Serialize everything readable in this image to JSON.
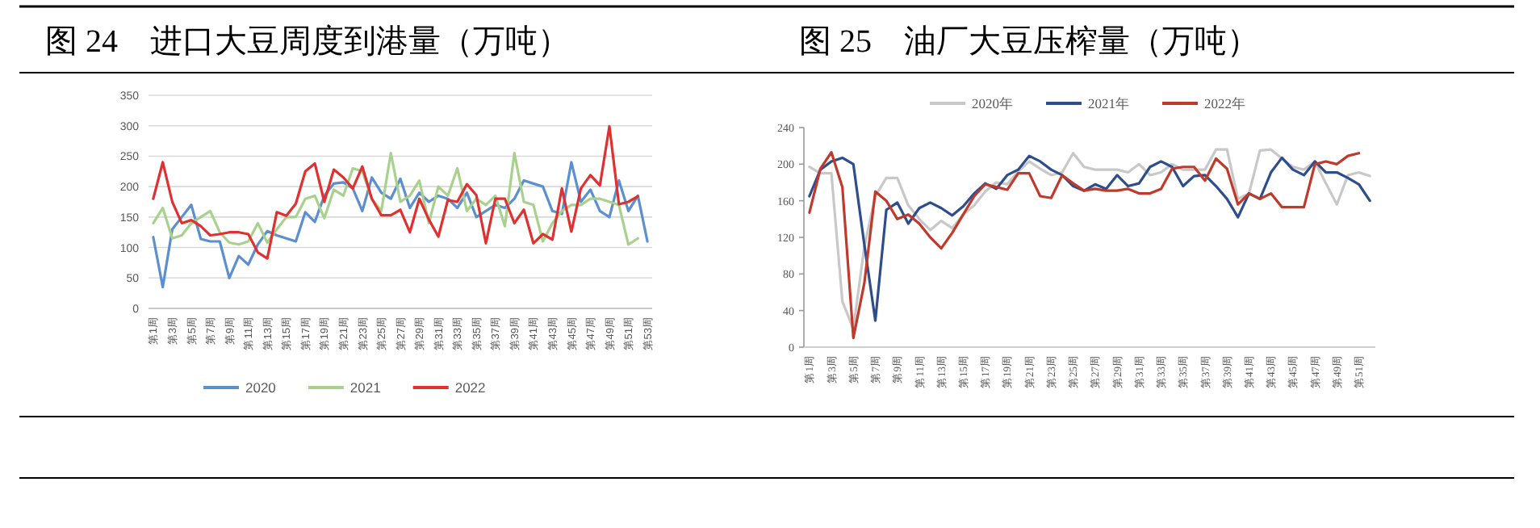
{
  "chart_data": [
    {
      "type": "line",
      "title": "图 24　进口大豆周度到港量（万吨）",
      "categories": [
        "第1周",
        null,
        "第3周",
        null,
        "第5周",
        null,
        "第7周",
        null,
        "第9周",
        null,
        "第11周",
        null,
        "第13周",
        null,
        "第15周",
        null,
        "第17周",
        null,
        "第19周",
        null,
        "第21周",
        null,
        "第23周",
        null,
        "第25周",
        null,
        "第27周",
        null,
        "第29周",
        null,
        "第31周",
        null,
        "第33周",
        null,
        "第35周",
        null,
        "第37周",
        null,
        "第39周",
        null,
        "第41周",
        null,
        "第43周",
        null,
        "第45周",
        null,
        "第47周",
        null,
        "第49周",
        null,
        "第51周",
        null,
        "第53周"
      ],
      "series": [
        {
          "name": "2020",
          "color": "#5b8fcf",
          "values": [
            117,
            35,
            130,
            150,
            170,
            114,
            110,
            110,
            50,
            86,
            72,
            105,
            127,
            120,
            115,
            110,
            158,
            142,
            185,
            205,
            207,
            197,
            160,
            215,
            190,
            180,
            213,
            165,
            190,
            175,
            185,
            180,
            165,
            190,
            150,
            160,
            170,
            165,
            180,
            210,
            205,
            200,
            160,
            155,
            240,
            175,
            195,
            160,
            150,
            210,
            160,
            185,
            110
          ]
        },
        {
          "name": "2021",
          "color": "#a9d18e",
          "values": [
            140,
            165,
            115,
            120,
            140,
            150,
            160,
            125,
            108,
            105,
            110,
            140,
            108,
            130,
            150,
            150,
            180,
            185,
            148,
            195,
            185,
            230,
            225,
            180,
            160,
            255,
            175,
            185,
            210,
            140,
            200,
            185,
            230,
            160,
            180,
            170,
            185,
            135,
            255,
            175,
            170,
            110,
            140,
            160,
            170,
            170,
            180,
            180,
            175,
            170,
            105,
            115,
            null
          ]
        },
        {
          "name": "2022",
          "color": "#e03030",
          "values": [
            180,
            240,
            175,
            140,
            145,
            135,
            120,
            122,
            125,
            125,
            122,
            92,
            82,
            158,
            152,
            172,
            225,
            238,
            175,
            228,
            215,
            197,
            233,
            180,
            153,
            153,
            162,
            125,
            180,
            146,
            118,
            178,
            175,
            204,
            186,
            107,
            180,
            180,
            140,
            162,
            107,
            122,
            113,
            197,
            126,
            197,
            219,
            202,
            299,
            171,
            175,
            184,
            null
          ]
        }
      ],
      "ylim": [
        0,
        350
      ],
      "yticks": [
        0,
        50,
        100,
        150,
        200,
        250,
        300,
        350
      ],
      "grid": "y",
      "legend": "bottom"
    },
    {
      "type": "line",
      "title": "图 25　油厂大豆压榨量（万吨）",
      "categories": [
        "第1周",
        null,
        "第3周",
        null,
        "第5周",
        null,
        "第7周",
        null,
        "第9周",
        null,
        "第11周",
        null,
        "第13周",
        null,
        "第15周",
        null,
        "第17周",
        null,
        "第19周",
        null,
        "第21周",
        null,
        "第23周",
        null,
        "第25周",
        null,
        "第27周",
        null,
        "第29周",
        null,
        "第31周",
        null,
        "第33周",
        null,
        "第35周",
        null,
        "第37周",
        null,
        "第39周",
        null,
        "第41周",
        null,
        "第43周",
        null,
        "第45周",
        null,
        "第47周",
        null,
        "第49周",
        null,
        "第51周",
        null
      ],
      "series": [
        {
          "name": "2020年",
          "color": "#c8c8c8",
          "values": [
            197,
            190,
            190,
            50,
            20,
            110,
            165,
            185,
            185,
            155,
            140,
            128,
            138,
            130,
            145,
            155,
            170,
            180,
            178,
            192,
            203,
            195,
            188,
            191,
            212,
            197,
            194,
            194,
            194,
            191,
            200,
            188,
            191,
            200,
            194,
            194,
            194,
            216,
            216,
            162,
            168,
            215,
            216,
            206,
            197,
            194,
            203,
            179,
            156,
            188,
            191,
            187
          ]
        },
        {
          "name": "2021年",
          "color": "#2e4d8c",
          "values": [
            165,
            194,
            203,
            207,
            200,
            112,
            29,
            150,
            158,
            135,
            152,
            158,
            152,
            144,
            154,
            168,
            179,
            173,
            188,
            194,
            209,
            203,
            194,
            188,
            176,
            171,
            178,
            173,
            188,
            176,
            179,
            197,
            203,
            197,
            176,
            187,
            188,
            176,
            162,
            142,
            168,
            162,
            191,
            207,
            194,
            188,
            203,
            191,
            191,
            185,
            178,
            160
          ]
        },
        {
          "name": "2022年",
          "color": "#c0392b",
          "values": [
            147,
            195,
            213,
            175,
            10,
            70,
            170,
            160,
            140,
            145,
            135,
            120,
            108,
            125,
            145,
            165,
            178,
            175,
            172,
            190,
            190,
            165,
            163,
            188,
            179,
            171,
            173,
            171,
            171,
            173,
            168,
            168,
            173,
            195,
            197,
            197,
            182,
            206,
            195,
            156,
            168,
            162,
            168,
            153,
            153,
            153,
            200,
            203,
            200,
            209,
            212,
            null
          ]
        }
      ],
      "ylim": [
        0,
        240
      ],
      "yticks": [
        0,
        40,
        80,
        120,
        160,
        200,
        240
      ],
      "grid": false,
      "legend": "top"
    }
  ]
}
